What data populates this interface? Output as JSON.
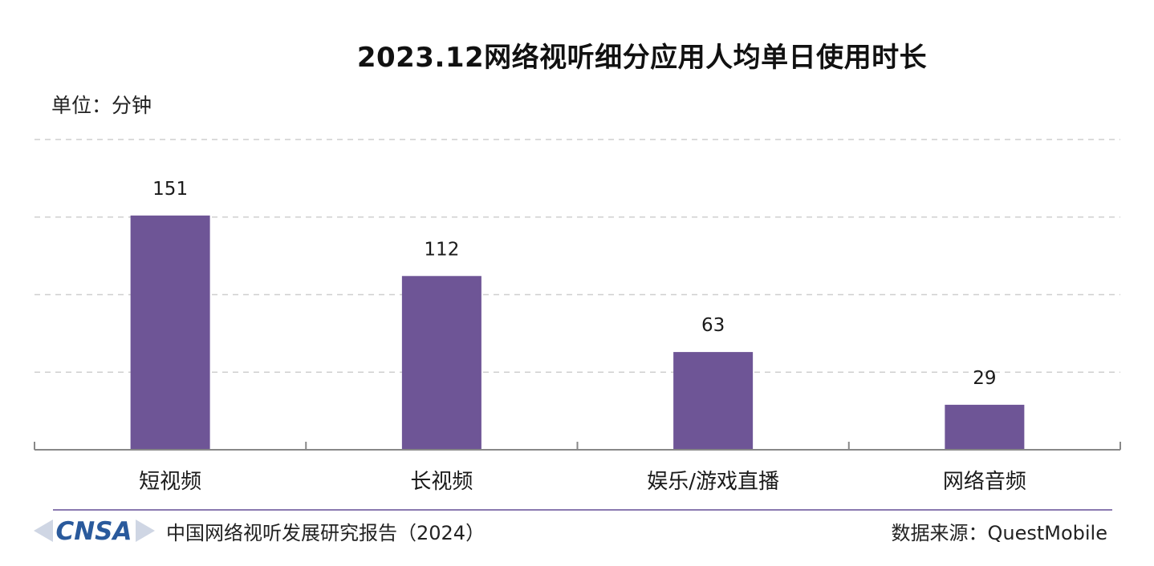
{
  "chart_data": {
    "type": "bar",
    "title": "2023.12网络视听细分应用人均单日使用时长",
    "unit_label": "单位：分钟",
    "categories": [
      "短视频",
      "长视频",
      "娱乐/游戏直播",
      "网络音频"
    ],
    "values": [
      151,
      112,
      63,
      29
    ],
    "ylim": [
      0,
      200
    ],
    "grid": true,
    "bar_color": "#6e5596",
    "xlabel": "",
    "ylabel": ""
  },
  "footer": {
    "logo_text": "CNSA",
    "report": "中国网络视听发展研究报告（2024）",
    "source": "数据来源：QuestMobile"
  },
  "colors": {
    "bar": "#6e5596",
    "grid": "#cfcfcf",
    "axis": "#888888",
    "logo": "#2a5a9c",
    "divider": "#8a7ab0"
  }
}
